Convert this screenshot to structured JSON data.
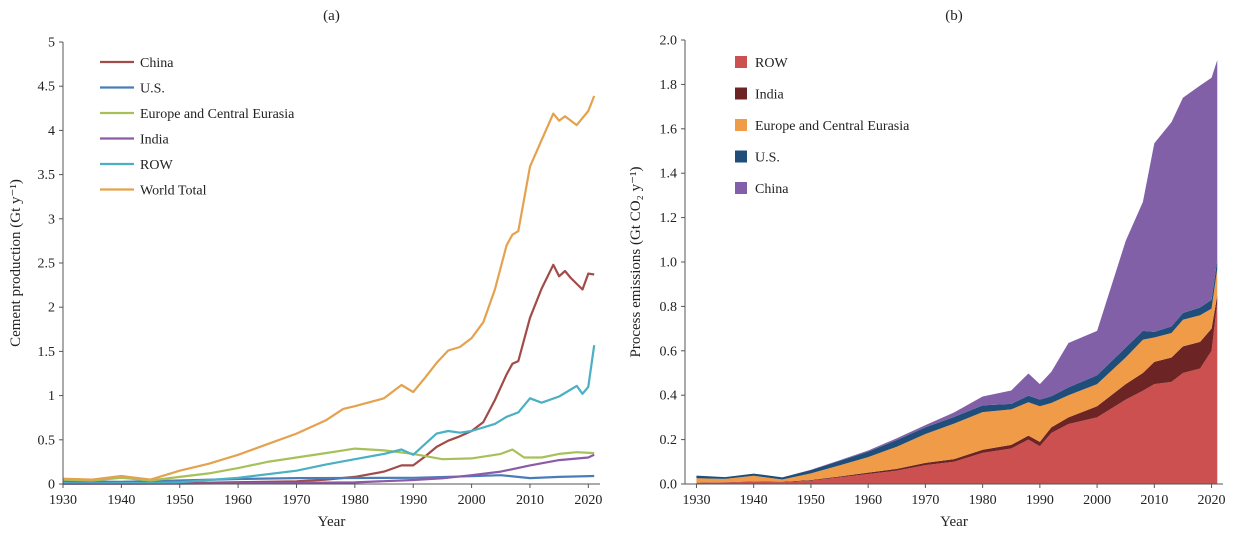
{
  "chart_data": [
    {
      "type": "line",
      "panel_label": "(a)",
      "xlabel": "Year",
      "ylabel": "Cement production (Gt y⁻¹)",
      "xlim": [
        1930,
        2022
      ],
      "ylim": [
        0,
        5
      ],
      "x_ticks": [
        "1930",
        "1940",
        "1950",
        "1960",
        "1970",
        "1980",
        "1990",
        "2000",
        "2010",
        "2020"
      ],
      "y_ticks": [
        "0",
        "0.5",
        "1",
        "1.5",
        "2",
        "2.5",
        "3",
        "3.5",
        "4",
        "4.5",
        "5"
      ],
      "legend_position": "top-left",
      "series": [
        {
          "name": "China",
          "color": "#a04c48",
          "x": [
            1930,
            1940,
            1950,
            1960,
            1970,
            1975,
            1980,
            1985,
            1988,
            1990,
            1992,
            1994,
            1996,
            1998,
            2000,
            2002,
            2004,
            2006,
            2007,
            2008,
            2010,
            2012,
            2014,
            2015,
            2016,
            2017,
            2019,
            2020,
            2021
          ],
          "y": [
            0.005,
            0.01,
            0.01,
            0.02,
            0.03,
            0.05,
            0.08,
            0.14,
            0.21,
            0.21,
            0.31,
            0.42,
            0.49,
            0.54,
            0.6,
            0.7,
            0.95,
            1.24,
            1.36,
            1.39,
            1.88,
            2.21,
            2.48,
            2.35,
            2.41,
            2.33,
            2.2,
            2.38,
            2.37
          ]
        },
        {
          "name": "U.S.",
          "color": "#4a7db8",
          "x": [
            1930,
            1940,
            1950,
            1960,
            1970,
            1980,
            1990,
            2000,
            2005,
            2010,
            2015,
            2021
          ],
          "y": [
            0.03,
            0.025,
            0.04,
            0.056,
            0.067,
            0.068,
            0.07,
            0.088,
            0.1,
            0.067,
            0.08,
            0.09
          ]
        },
        {
          "name": "Europe and Central Eurasia",
          "color": "#a8c05a",
          "x": [
            1930,
            1935,
            1940,
            1945,
            1950,
            1955,
            1960,
            1965,
            1970,
            1975,
            1978,
            1980,
            1985,
            1990,
            1995,
            2000,
            2005,
            2007,
            2009,
            2012,
            2015,
            2018,
            2021
          ],
          "y": [
            0.05,
            0.04,
            0.07,
            0.04,
            0.08,
            0.12,
            0.18,
            0.25,
            0.3,
            0.35,
            0.38,
            0.4,
            0.38,
            0.34,
            0.28,
            0.29,
            0.34,
            0.39,
            0.3,
            0.3,
            0.34,
            0.36,
            0.35
          ]
        },
        {
          "name": "India",
          "color": "#8c5ba8",
          "x": [
            1930,
            1950,
            1960,
            1970,
            1980,
            1990,
            1995,
            2000,
            2005,
            2010,
            2015,
            2020,
            2021
          ],
          "y": [
            0.002,
            0.003,
            0.008,
            0.014,
            0.018,
            0.045,
            0.065,
            0.1,
            0.14,
            0.21,
            0.27,
            0.3,
            0.33
          ]
        },
        {
          "name": "ROW",
          "color": "#4ab0c2",
          "x": [
            1930,
            1940,
            1945,
            1950,
            1960,
            1970,
            1975,
            1980,
            1985,
            1988,
            1990,
            1992,
            1994,
            1996,
            1998,
            2000,
            2004,
            2006,
            2008,
            2010,
            2012,
            2015,
            2018,
            2019,
            2020,
            2021
          ],
          "y": [
            0.005,
            0.01,
            0.01,
            0.02,
            0.07,
            0.15,
            0.22,
            0.28,
            0.34,
            0.39,
            0.33,
            0.45,
            0.57,
            0.6,
            0.58,
            0.6,
            0.68,
            0.76,
            0.81,
            0.97,
            0.92,
            0.99,
            1.11,
            1.02,
            1.1,
            1.57
          ]
        },
        {
          "name": "World Total",
          "color": "#e5a24e",
          "x": [
            1930,
            1935,
            1940,
            1945,
            1950,
            1955,
            1960,
            1965,
            1970,
            1975,
            1978,
            1980,
            1985,
            1988,
            1990,
            1992,
            1994,
            1996,
            1998,
            2000,
            2002,
            2004,
            2006,
            2007,
            2008,
            2010,
            2012,
            2014,
            2015,
            2016,
            2018,
            2020,
            2021
          ],
          "y": [
            0.06,
            0.05,
            0.09,
            0.05,
            0.15,
            0.23,
            0.33,
            0.45,
            0.57,
            0.72,
            0.85,
            0.88,
            0.97,
            1.12,
            1.04,
            1.2,
            1.37,
            1.51,
            1.55,
            1.65,
            1.83,
            2.2,
            2.7,
            2.82,
            2.86,
            3.59,
            3.89,
            4.19,
            4.11,
            4.16,
            4.06,
            4.22,
            4.39
          ]
        }
      ]
    },
    {
      "type": "area",
      "stacked": true,
      "panel_label": "(b)",
      "xlabel": "Year",
      "ylabel": "Process emissions (Gt CO₂ y⁻¹)",
      "xlim": [
        1928,
        2022
      ],
      "ylim": [
        0,
        2.0
      ],
      "x_ticks": [
        "1930",
        "1940",
        "1950",
        "1960",
        "1970",
        "1980",
        "1990",
        "2000",
        "2010",
        "2020"
      ],
      "y_ticks": [
        "0.0",
        "0.2",
        "0.4",
        "0.6",
        "0.8",
        "1.0",
        "1.2",
        "1.4",
        "1.6",
        "1.8",
        "2.0"
      ],
      "legend_position": "top-left",
      "x": [
        1930,
        1935,
        1940,
        1945,
        1950,
        1955,
        1960,
        1965,
        1970,
        1975,
        1980,
        1985,
        1988,
        1990,
        1992,
        1995,
        2000,
        2005,
        2008,
        2010,
        2013,
        2015,
        2018,
        2020,
        2021
      ],
      "series": [
        {
          "name": "ROW",
          "color": "#cc5050",
          "values": [
            0.005,
            0.007,
            0.01,
            0.008,
            0.015,
            0.03,
            0.045,
            0.06,
            0.085,
            0.1,
            0.14,
            0.16,
            0.2,
            0.17,
            0.23,
            0.27,
            0.3,
            0.38,
            0.42,
            0.45,
            0.46,
            0.5,
            0.52,
            0.6,
            0.82
          ]
        },
        {
          "name": "India",
          "color": "#6c2424",
          "values": [
            0.001,
            0.001,
            0.002,
            0.002,
            0.003,
            0.004,
            0.006,
            0.008,
            0.01,
            0.012,
            0.014,
            0.016,
            0.018,
            0.02,
            0.025,
            0.03,
            0.05,
            0.07,
            0.08,
            0.1,
            0.11,
            0.12,
            0.12,
            0.1,
            0.03
          ]
        },
        {
          "name": "Europe and Central Eurasia",
          "color": "#f09b48",
          "values": [
            0.02,
            0.015,
            0.025,
            0.01,
            0.03,
            0.05,
            0.07,
            0.1,
            0.13,
            0.16,
            0.17,
            0.16,
            0.15,
            0.16,
            0.11,
            0.1,
            0.1,
            0.12,
            0.15,
            0.11,
            0.11,
            0.12,
            0.12,
            0.09,
            0.12
          ]
        },
        {
          "name": "U.S.",
          "color": "#1f4e7a",
          "values": [
            0.012,
            0.008,
            0.01,
            0.01,
            0.015,
            0.02,
            0.025,
            0.03,
            0.03,
            0.03,
            0.03,
            0.025,
            0.03,
            0.03,
            0.03,
            0.035,
            0.04,
            0.045,
            0.04,
            0.025,
            0.03,
            0.03,
            0.035,
            0.04,
            0.04
          ]
        },
        {
          "name": "China",
          "color": "#8160a8",
          "values": [
            0.0,
            0.0,
            0.0,
            0.0,
            0.001,
            0.003,
            0.005,
            0.008,
            0.01,
            0.02,
            0.04,
            0.06,
            0.1,
            0.07,
            0.11,
            0.2,
            0.2,
            0.48,
            0.58,
            0.85,
            0.92,
            0.97,
            1.0,
            1.0,
            0.9
          ]
        }
      ]
    }
  ]
}
